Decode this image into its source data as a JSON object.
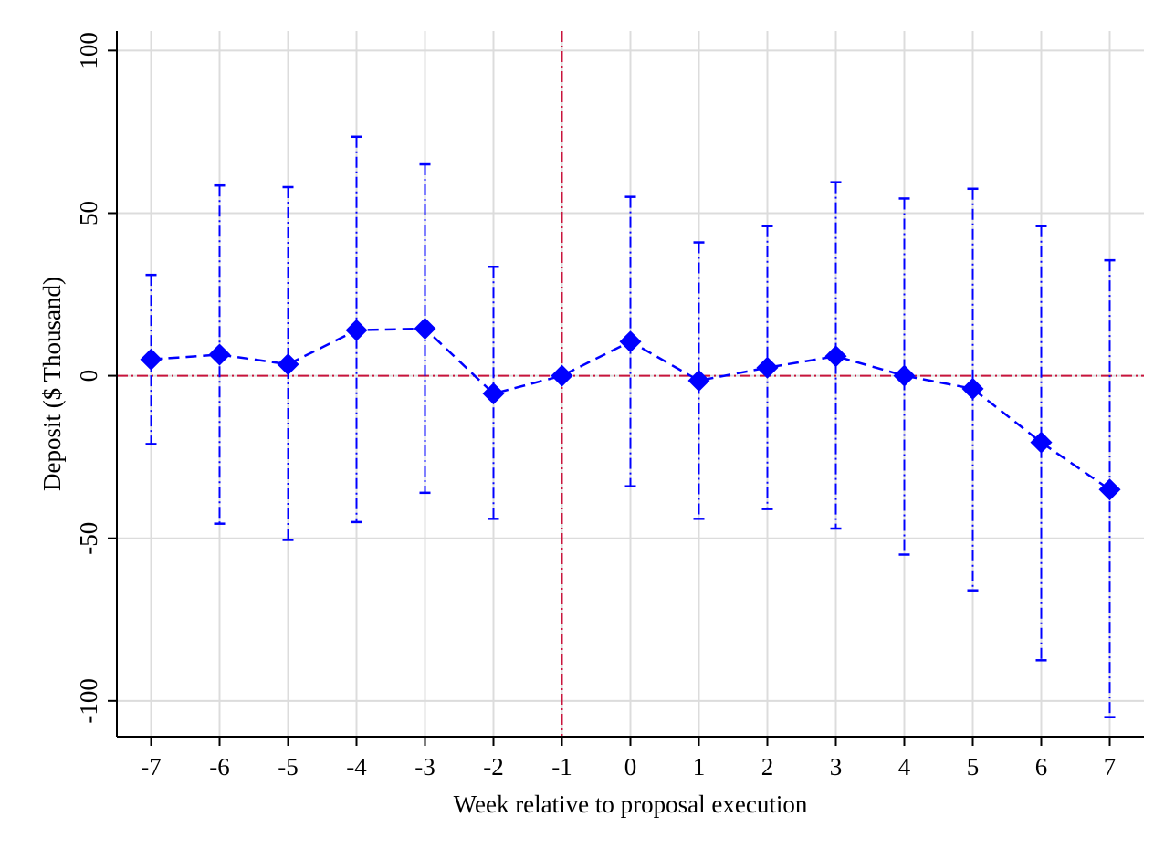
{
  "chart_data": {
    "type": "scatter",
    "title": "",
    "xlabel": "Week relative to proposal execution",
    "ylabel": "Deposit ($ Thousand)",
    "x": [
      -7,
      -6,
      -5,
      -4,
      -3,
      -2,
      -1,
      0,
      1,
      2,
      3,
      4,
      5,
      6,
      7
    ],
    "x_tick_labels": [
      "-7",
      "-6",
      "-5",
      "-4",
      "-3",
      "-2",
      "-1",
      "0",
      "1",
      "2",
      "3",
      "4",
      "5",
      "6",
      "7"
    ],
    "y_ticks": [
      100,
      50,
      0,
      -50,
      -100
    ],
    "y_tick_labels": [
      "100",
      "50",
      "0",
      "-50",
      "-100"
    ],
    "xlim": [
      -7.5,
      7.5
    ],
    "ylim": [
      -111,
      106
    ],
    "grid": true,
    "legend": "none",
    "series": [
      {
        "estimate": [
          5,
          6.5,
          3.5,
          14,
          14.5,
          -5.5,
          0,
          10.5,
          -1.5,
          2.5,
          6,
          0,
          -4,
          -20.5,
          -35
        ],
        "ci_upper": [
          31,
          58.5,
          58,
          73.5,
          65,
          33.5,
          0,
          55,
          41,
          46,
          59.5,
          54.5,
          57.5,
          46,
          35.5
        ],
        "ci_lower": [
          -21,
          -45.5,
          -50.5,
          -45,
          -36,
          -44,
          0,
          -34,
          -44,
          -41,
          -47,
          -55,
          -66,
          -87.5,
          -105
        ]
      }
    ],
    "reference_lines": {
      "vertical_x": -1,
      "horizontal_y": 0
    },
    "colors": {
      "series": "#0000ff",
      "reference": "#c8143c",
      "grid": "#dcdcdc",
      "axis": "#000000"
    }
  }
}
